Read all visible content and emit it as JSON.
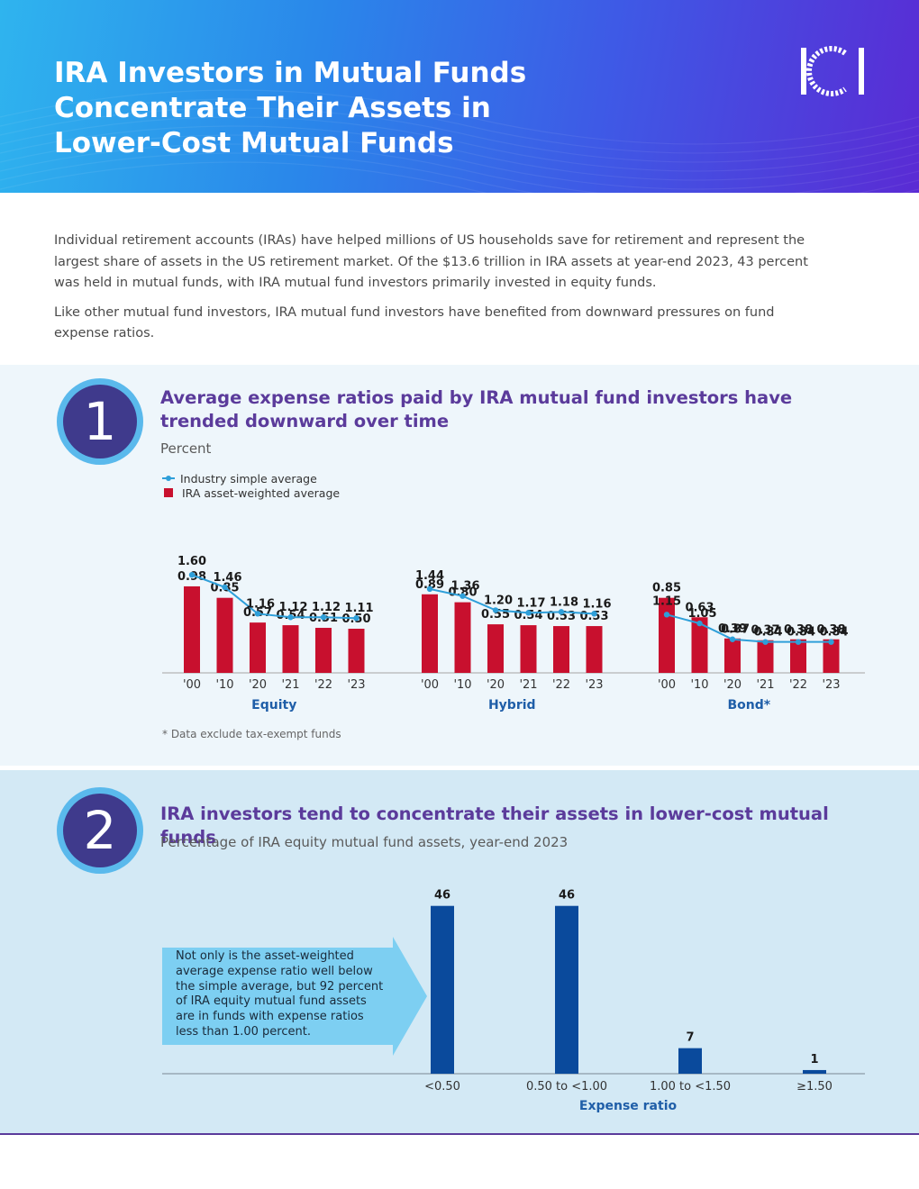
{
  "hero": {
    "title": "IRA Investors in Mutual Funds Concentrate Their Assets in Lower-Cost Mutual Funds",
    "logo": "ICI"
  },
  "intro": {
    "p1": "Individual retirement accounts (IRAs) have helped millions of US households save for retirement and represent the largest share of assets in the US retirement market. Of the $13.6 trillion in IRA assets at year-end 2023, 43 percent was held in mutual funds, with IRA mutual fund investors primarily invested in equity funds.",
    "p2": "Like other mutual fund investors, IRA mutual fund investors have benefited from downward pressures on fund expense ratios."
  },
  "section1": {
    "number": "1",
    "title": "Average expense ratios paid by IRA mutual fund investors have trended downward over time",
    "subtitle": "Percent",
    "legend_line": "Industry simple average",
    "legend_bar": "IRA asset-weighted average",
    "footnote": "* Data exclude tax-exempt funds"
  },
  "section2": {
    "number": "2",
    "title": "IRA investors tend to concentrate their assets in lower-cost mutual funds",
    "subtitle": "Percentage of IRA equity mutual fund assets, year-end 2023",
    "callout": "Not only is the asset-weighted average expense ratio well below the simple average, but 92 percent of IRA equity mutual fund assets are in funds with expense ratios less than 1.00 percent."
  },
  "colors": {
    "bar_red": "#c8102e",
    "line_blue": "#2e9fd9",
    "bar_navy": "#0a4a9c",
    "group_label": "#1f5ea8",
    "title_purple": "#5b3b9b"
  },
  "chart_data": [
    {
      "type": "bar",
      "combo": "bar+line",
      "groups": [
        {
          "name": "Equity",
          "categories": [
            "'00",
            "'10",
            "'20",
            "'21",
            "'22",
            "'23"
          ],
          "series": [
            {
              "name": "Industry simple average",
              "kind": "line",
              "values": [
                1.6,
                1.46,
                1.16,
                1.12,
                1.12,
                1.11
              ]
            },
            {
              "name": "IRA asset-weighted average",
              "kind": "bar",
              "values": [
                0.98,
                0.85,
                0.57,
                0.54,
                0.51,
                0.5
              ]
            }
          ]
        },
        {
          "name": "Hybrid",
          "categories": [
            "'00",
            "'10",
            "'20",
            "'21",
            "'22",
            "'23"
          ],
          "series": [
            {
              "name": "Industry simple average",
              "kind": "line",
              "values": [
                1.44,
                1.36,
                1.2,
                1.17,
                1.18,
                1.16
              ]
            },
            {
              "name": "IRA asset-weighted average",
              "kind": "bar",
              "values": [
                0.89,
                0.8,
                0.55,
                0.54,
                0.53,
                0.53
              ]
            }
          ]
        },
        {
          "name": "Bond*",
          "categories": [
            "'00",
            "'10",
            "'20",
            "'21",
            "'22",
            "'23"
          ],
          "series": [
            {
              "name": "Industry simple average",
              "kind": "line",
              "values": [
                1.15,
                1.05,
                0.87,
                0.84,
                0.84,
                0.84
              ]
            },
            {
              "name": "IRA asset-weighted average",
              "kind": "bar",
              "values": [
                0.85,
                0.63,
                0.39,
                0.37,
                0.38,
                0.38
              ]
            }
          ]
        }
      ],
      "ylabel": "Percent",
      "grid": false,
      "legend": "top-left"
    },
    {
      "type": "bar",
      "categories": [
        "<0.50",
        "0.50 to <1.00",
        "1.00 to <1.50",
        "≥1.50"
      ],
      "values": [
        46,
        46,
        7,
        1
      ],
      "xlabel": "Expense ratio",
      "grid": false
    }
  ]
}
